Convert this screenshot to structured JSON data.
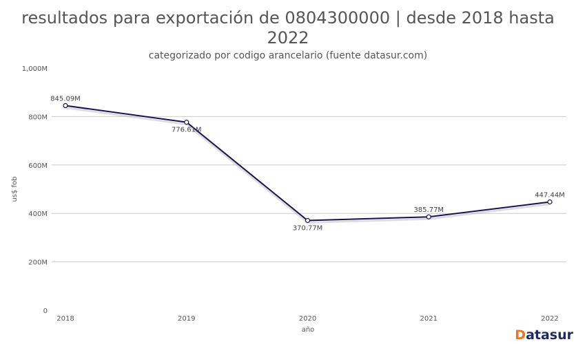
{
  "chart_data": {
    "type": "line",
    "title": "resultados para exportación de 0804300000 | desde 2018 hasta 2022",
    "subtitle": "categorizado por codigo arancelario (fuente datasur.com)",
    "xlabel": "año",
    "ylabel": "us$ fob",
    "categories": [
      "2018",
      "2019",
      "2020",
      "2021",
      "2022"
    ],
    "values": [
      845.09,
      776.61,
      370.77,
      385.77,
      447.44
    ],
    "data_labels": [
      "845.09M",
      "776.61M",
      "370.77M",
      "385.77M",
      "447.44M"
    ],
    "ylim": [
      0,
      1000
    ],
    "yticks": [
      0,
      200,
      400,
      600,
      800,
      1000
    ],
    "ytick_labels": [
      "0",
      "200M",
      "400M",
      "600M",
      "800M",
      "1,000M"
    ],
    "grid": true,
    "line_color": "#1a1150"
  },
  "brand": {
    "logo_first": "D",
    "logo_rest": "atasur",
    "accent": "#e87722"
  }
}
